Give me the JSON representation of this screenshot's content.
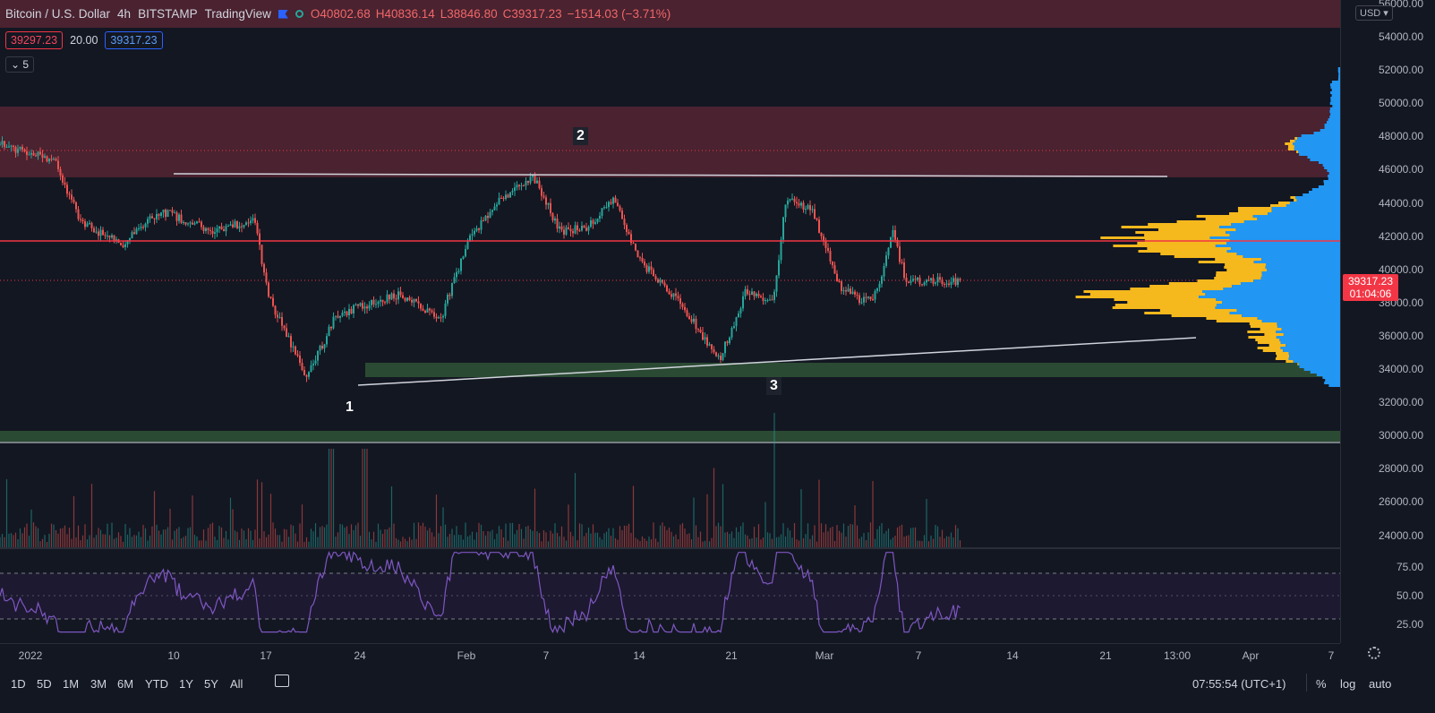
{
  "legend": {
    "symbol": "Bitcoin / U.S. Dollar",
    "interval": "4h",
    "exchange": "BITSTAMP",
    "source": "TradingView",
    "open": "O40802.68",
    "high": "H40836.14",
    "low": "L38846.80",
    "close": "C39317.23",
    "change": "−1514.03 (−3.71%)"
  },
  "trade": {
    "sell": "39297.23",
    "spread": "20.00",
    "buy": "39317.23"
  },
  "indicators_toggle": "5",
  "currency": "USD",
  "last_price": {
    "value": "39317.23",
    "countdown": "01:04:06"
  },
  "price_axis": [
    "56000.00",
    "54000.00",
    "52000.00",
    "50000.00",
    "48000.00",
    "46000.00",
    "44000.00",
    "42000.00",
    "40000.00",
    "38000.00",
    "36000.00",
    "34000.00",
    "32000.00",
    "30000.00",
    "28000.00",
    "26000.00",
    "24000.00"
  ],
  "rsi_axis": [
    "75.00",
    "50.00",
    "25.00"
  ],
  "time_axis": [
    "2022",
    "10",
    "17",
    "24",
    "Feb",
    "7",
    "14",
    "21",
    "Mar",
    "7",
    "14",
    "21",
    "13:00",
    "Apr",
    "7"
  ],
  "markers": [
    "1",
    "2",
    "3"
  ],
  "bottom": {
    "ranges": [
      "1D",
      "5D",
      "1M",
      "3M",
      "6M",
      "YTD",
      "1Y",
      "5Y",
      "All"
    ],
    "clock": "07:55:54 (UTC+1)",
    "percent": "%",
    "log": "log",
    "auto": "auto"
  },
  "colors": {
    "up": "#26a69a",
    "down": "#ef5350",
    "zone_red": "#4a2230",
    "zone_green": "#2b4a33",
    "poc": "#f23645",
    "vp_yellow": "#f5b81d",
    "vp_blue": "#2196f3",
    "rsi": "#7e57c2"
  },
  "chart_data": {
    "type": "candlestick",
    "symbol": "Bitcoin / U.S. Dollar",
    "interval": "4h",
    "ylim": [
      23000,
      56500
    ],
    "key_points": [
      {
        "date": "2022-01-01",
        "price": 47500
      },
      {
        "date": "2022-01-05",
        "price": 46500
      },
      {
        "date": "2022-01-07",
        "price": 42800
      },
      {
        "date": "2022-01-10",
        "price": 41500
      },
      {
        "date": "2022-01-13",
        "price": 43500
      },
      {
        "date": "2022-01-17",
        "price": 42300
      },
      {
        "date": "2022-01-20",
        "price": 43000
      },
      {
        "date": "2022-01-21",
        "price": 38500
      },
      {
        "date": "2022-01-23",
        "price": 35000
      },
      {
        "date": "2022-01-24",
        "price": 33500
      },
      {
        "date": "2022-01-26",
        "price": 37000
      },
      {
        "date": "2022-01-28",
        "price": 37800
      },
      {
        "date": "2022-01-31",
        "price": 38500
      },
      {
        "date": "2022-02-03",
        "price": 37000
      },
      {
        "date": "2022-02-05",
        "price": 41600
      },
      {
        "date": "2022-02-07",
        "price": 43800
      },
      {
        "date": "2022-02-10",
        "price": 45600
      },
      {
        "date": "2022-02-12",
        "price": 42300
      },
      {
        "date": "2022-02-14",
        "price": 42500
      },
      {
        "date": "2022-02-16",
        "price": 44300
      },
      {
        "date": "2022-02-18",
        "price": 40500
      },
      {
        "date": "2022-02-21",
        "price": 38000
      },
      {
        "date": "2022-02-24",
        "price": 34500
      },
      {
        "date": "2022-02-26",
        "price": 38800
      },
      {
        "date": "2022-02-28",
        "price": 38000
      },
      {
        "date": "2022-03-01",
        "price": 44200
      },
      {
        "date": "2022-03-03",
        "price": 43500
      },
      {
        "date": "2022-03-05",
        "price": 39000
      },
      {
        "date": "2022-03-07",
        "price": 38000
      },
      {
        "date": "2022-03-08",
        "price": 38800
      },
      {
        "date": "2022-03-09",
        "price": 42200
      },
      {
        "date": "2022-03-10",
        "price": 39317
      }
    ],
    "zones": [
      {
        "color": "red",
        "from": 55000,
        "to": 56500
      },
      {
        "color": "red",
        "from": 45700,
        "to": 49800
      },
      {
        "color": "green",
        "from": 33500,
        "to": 34300
      },
      {
        "color": "green",
        "from": 29700,
        "to": 30100
      }
    ],
    "lines": [
      {
        "kind": "horizontal",
        "price": 41700,
        "color": "#f23645"
      },
      {
        "kind": "resistance",
        "from": {
          "date": "2022-01-05",
          "price": 45700
        },
        "to": {
          "date": "2022-03-19",
          "price": 45700
        }
      },
      {
        "kind": "support",
        "from": {
          "date": "2022-01-24",
          "price": 33000
        },
        "to": {
          "date": "2022-03-16",
          "price": 35900
        }
      }
    ],
    "rsi": {
      "levels": [
        30,
        50,
        70
      ],
      "ylim": [
        15,
        90
      ]
    }
  }
}
